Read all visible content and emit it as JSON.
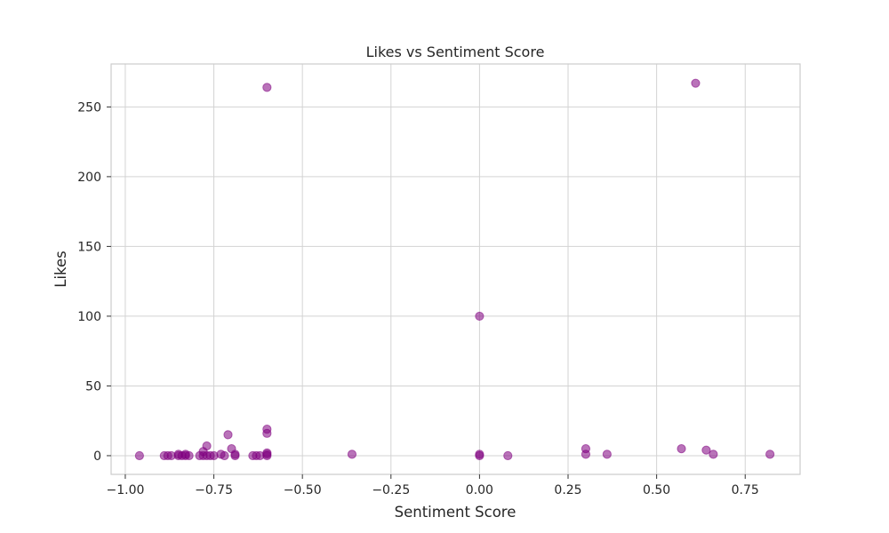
{
  "chart_data": {
    "type": "scatter",
    "title": "Likes vs Sentiment Score",
    "xlabel": "Sentiment Score",
    "ylabel": "Likes",
    "xlim": [
      -1.04,
      0.905
    ],
    "ylim": [
      -13.4,
      280.8
    ],
    "xticks": [
      -1.0,
      -0.75,
      -0.5,
      -0.25,
      0.0,
      0.25,
      0.5,
      0.75
    ],
    "xtick_labels": [
      "−1.00",
      "−0.75",
      "−0.50",
      "−0.25",
      "0.00",
      "0.25",
      "0.50",
      "0.75"
    ],
    "yticks": [
      0,
      50,
      100,
      150,
      200,
      250
    ],
    "ytick_labels": [
      "0",
      "50",
      "100",
      "150",
      "200",
      "250"
    ],
    "grid": true,
    "marker_color": "#800080",
    "marker_alpha": 0.55,
    "points": [
      {
        "x": -0.96,
        "y": 0
      },
      {
        "x": -0.89,
        "y": 0
      },
      {
        "x": -0.88,
        "y": 0
      },
      {
        "x": -0.87,
        "y": 0
      },
      {
        "x": -0.85,
        "y": 1
      },
      {
        "x": -0.85,
        "y": 0
      },
      {
        "x": -0.84,
        "y": 0
      },
      {
        "x": -0.83,
        "y": 1
      },
      {
        "x": -0.83,
        "y": 0
      },
      {
        "x": -0.82,
        "y": 0
      },
      {
        "x": -0.79,
        "y": 0
      },
      {
        "x": -0.78,
        "y": 3
      },
      {
        "x": -0.78,
        "y": 0
      },
      {
        "x": -0.77,
        "y": 7
      },
      {
        "x": -0.77,
        "y": 0
      },
      {
        "x": -0.76,
        "y": 0
      },
      {
        "x": -0.75,
        "y": 0
      },
      {
        "x": -0.73,
        "y": 1
      },
      {
        "x": -0.72,
        "y": 0
      },
      {
        "x": -0.71,
        "y": 15
      },
      {
        "x": -0.7,
        "y": 5
      },
      {
        "x": -0.69,
        "y": 1
      },
      {
        "x": -0.69,
        "y": 0
      },
      {
        "x": -0.64,
        "y": 0
      },
      {
        "x": -0.63,
        "y": 0
      },
      {
        "x": -0.62,
        "y": 0
      },
      {
        "x": -0.6,
        "y": 264
      },
      {
        "x": -0.6,
        "y": 19
      },
      {
        "x": -0.6,
        "y": 16
      },
      {
        "x": -0.6,
        "y": 2
      },
      {
        "x": -0.6,
        "y": 1
      },
      {
        "x": -0.6,
        "y": 0
      },
      {
        "x": -0.36,
        "y": 1
      },
      {
        "x": 0.0,
        "y": 100
      },
      {
        "x": 0.0,
        "y": 1
      },
      {
        "x": 0.0,
        "y": 0
      },
      {
        "x": 0.08,
        "y": 0
      },
      {
        "x": 0.3,
        "y": 5
      },
      {
        "x": 0.3,
        "y": 1
      },
      {
        "x": 0.36,
        "y": 1
      },
      {
        "x": 0.57,
        "y": 5
      },
      {
        "x": 0.61,
        "y": 267
      },
      {
        "x": 0.64,
        "y": 4
      },
      {
        "x": 0.66,
        "y": 1
      },
      {
        "x": 0.82,
        "y": 1
      }
    ]
  }
}
